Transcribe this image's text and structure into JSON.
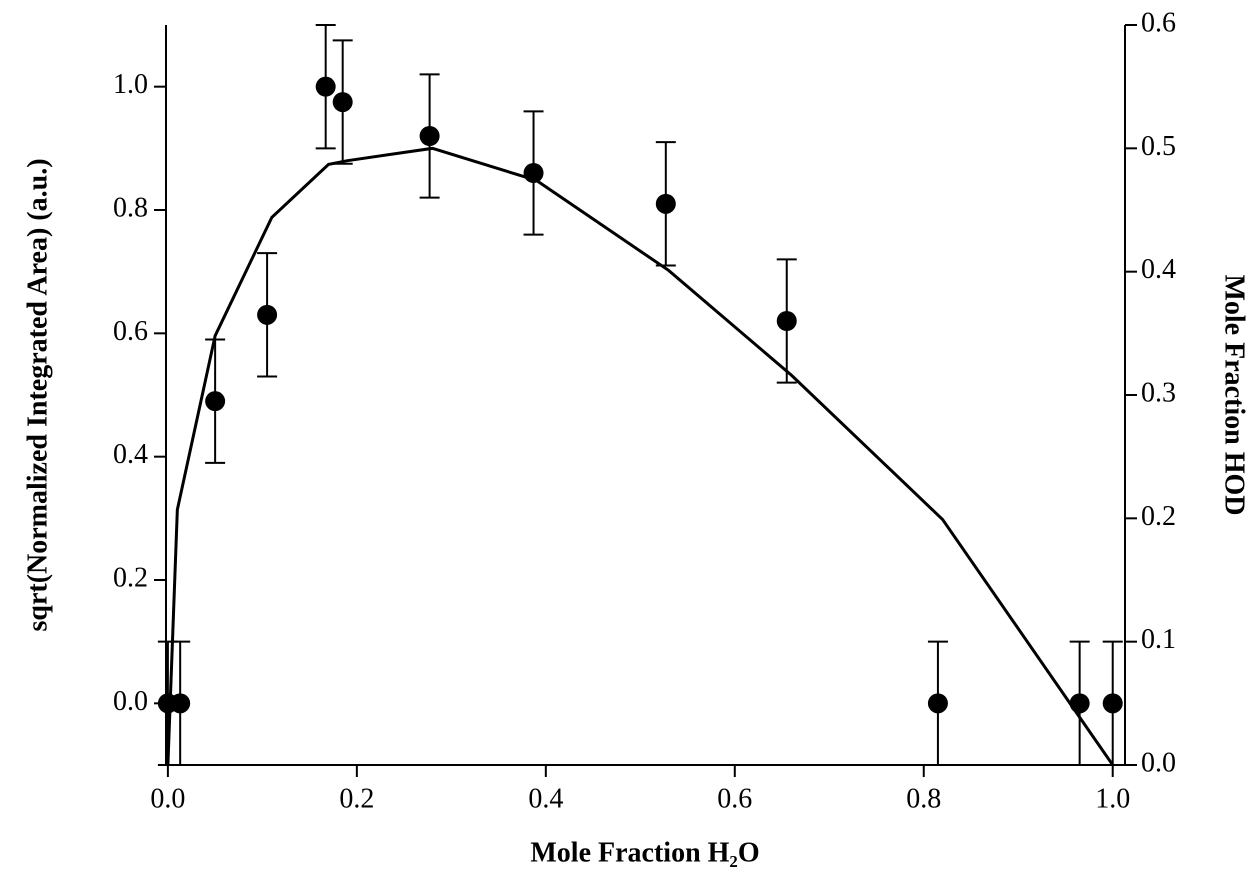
{
  "chart_data": {
    "type": "scatter",
    "xlabel": "Mole Fraction H₂O",
    "ylabel": "sqrt(Normalized Integrated Area) (a.u.)",
    "y2label": "Mole Fraction HOD",
    "xlim": [
      -0.002,
      1.013
    ],
    "xticks": [
      {
        "value": 0,
        "label": "0.0"
      },
      {
        "value": 0.2,
        "label": "0.2"
      },
      {
        "value": 0.4,
        "label": "0.4"
      },
      {
        "value": 0.6,
        "label": "0.6"
      },
      {
        "value": 0.8,
        "label": "0.8"
      },
      {
        "value": 1,
        "label": "1.0"
      }
    ],
    "ylim": [
      -0.1,
      1.1
    ],
    "yticks": [
      {
        "value": 0,
        "label": "0.0"
      },
      {
        "value": 0.2,
        "label": "0.2"
      },
      {
        "value": 0.4,
        "label": "0.4"
      },
      {
        "value": 0.6,
        "label": "0.6"
      },
      {
        "value": 0.8,
        "label": "0.8"
      },
      {
        "value": 1,
        "label": "1.0"
      }
    ],
    "y2lim": [
      0,
      0.6
    ],
    "y2ticks": [
      {
        "value": 0,
        "label": "0.0"
      },
      {
        "value": 0.1,
        "label": "0.1"
      },
      {
        "value": 0.2,
        "label": "0.2"
      },
      {
        "value": 0.3,
        "label": "0.3"
      },
      {
        "value": 0.4,
        "label": "0.4"
      },
      {
        "value": 0.5,
        "label": "0.5"
      },
      {
        "value": 0.6,
        "label": "0.6"
      }
    ],
    "series": [
      {
        "type": "scatter",
        "color": "#000000",
        "x": [
          0,
          0.013,
          0.05,
          0.105,
          0.167,
          0.185,
          0.277,
          0.387,
          0.527,
          0.655,
          0.815,
          0.965,
          1.0
        ],
        "values": [
          0,
          0,
          0.49,
          0.63,
          1.0,
          0.975,
          0.92,
          0.86,
          0.81,
          0.62,
          0,
          0,
          0
        ],
        "errors": [
          0.1,
          0.1,
          0.1,
          0.1,
          0.1,
          0.1,
          0.1,
          0.1,
          0.1,
          0.1,
          0.1,
          0.1,
          0.1
        ]
      },
      {
        "type": "line",
        "axis": "y2",
        "color": "#000000",
        "x": [
          0,
          0.01,
          0.05,
          0.11,
          0.17,
          0.19,
          0.28,
          0.39,
          0.53,
          0.66,
          0.82,
          1.0
        ],
        "values": [
          0,
          0.207,
          0.348,
          0.444,
          0.487,
          0.49,
          0.5,
          0.474,
          0.401,
          0.316,
          0.199,
          0
        ]
      }
    ]
  }
}
